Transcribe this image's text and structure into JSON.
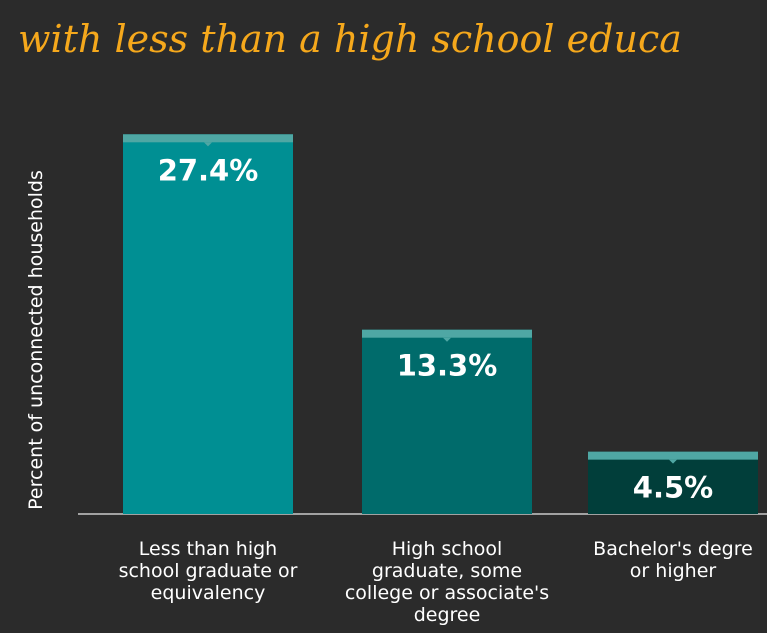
{
  "title": "with less than a high school educa",
  "chart_data": {
    "type": "bar",
    "title": "with less than a high school educa",
    "ylabel": "Percent of unconnected households",
    "xlabel": "",
    "categories": [
      [
        "Less than high",
        "school graduate or",
        "equivalency"
      ],
      [
        "High school",
        "graduate, some",
        "college or associate's",
        "degree"
      ],
      [
        "Bachelor's degre",
        "or higher"
      ]
    ],
    "values": [
      27.4,
      13.3,
      4.5
    ],
    "value_labels": [
      "27.4%",
      "13.3%",
      "4.5%"
    ],
    "ylim": [
      0,
      28
    ],
    "grid": false,
    "colors": [
      "#008f93",
      "#006b6b",
      "#013e3a"
    ],
    "cap_color": "#4fa7a4"
  }
}
